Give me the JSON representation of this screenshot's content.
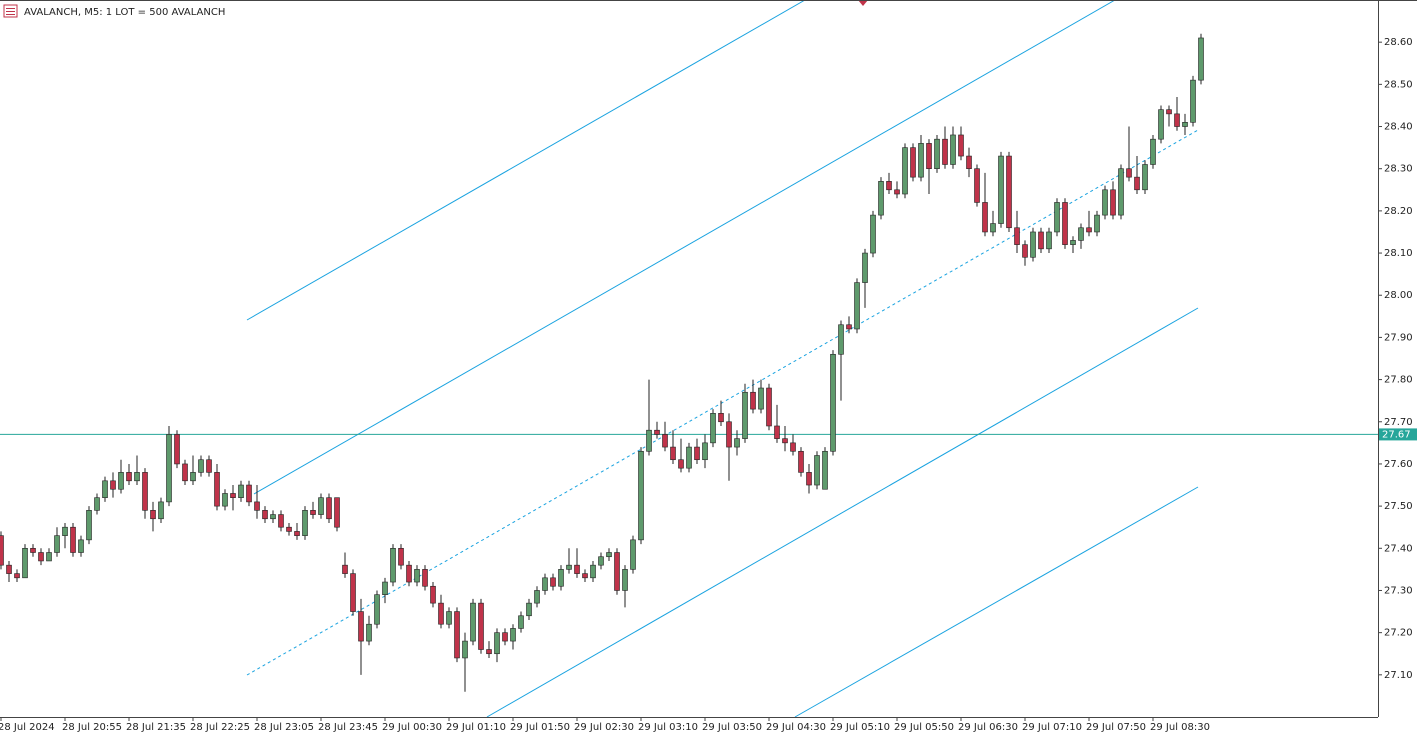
{
  "chart_data": {
    "type": "candlestick",
    "title": "AVALANCH, M5:  1 LOT = 500 AVALANCH",
    "up_color": "#5e9a6c",
    "down_color": "#c0334a",
    "ylim": [
      27.0,
      28.7
    ],
    "yticks": [
      {
        "value": 27.1,
        "label": "27.10"
      },
      {
        "value": 27.2,
        "label": "27.20"
      },
      {
        "value": 27.3,
        "label": "27.30"
      },
      {
        "value": 27.4,
        "label": "27.40"
      },
      {
        "value": 27.5,
        "label": "27.50"
      },
      {
        "value": 27.6,
        "label": "27.60"
      },
      {
        "value": 27.7,
        "label": "27.70"
      },
      {
        "value": 27.8,
        "label": "27.80"
      },
      {
        "value": 27.9,
        "label": "27.90"
      },
      {
        "value": 28.0,
        "label": "28.00"
      },
      {
        "value": 28.1,
        "label": "28.10"
      },
      {
        "value": 28.2,
        "label": "28.20"
      },
      {
        "value": 28.3,
        "label": "28.30"
      },
      {
        "value": 28.4,
        "label": "28.40"
      },
      {
        "value": 28.5,
        "label": "28.50"
      },
      {
        "value": 28.6,
        "label": "28.60"
      }
    ],
    "price_line": {
      "value": 27.67,
      "label": "27.67"
    },
    "categories": [
      "28 Jul 2024",
      null,
      null,
      null,
      null,
      null,
      null,
      null,
      "28 Jul 20:55",
      null,
      null,
      null,
      null,
      null,
      null,
      null,
      "28 Jul 21:35",
      null,
      null,
      null,
      null,
      null,
      null,
      null,
      "28 Jul 22:25",
      null,
      null,
      null,
      null,
      null,
      null,
      null,
      "28 Jul 23:05",
      null,
      null,
      null,
      null,
      null,
      null,
      null,
      "28 Jul 23:45",
      null,
      null,
      null,
      null,
      null,
      null,
      null,
      "29 Jul 00:30",
      null,
      null,
      null,
      null,
      null,
      null,
      null,
      "29 Jul 01:10",
      null,
      null,
      null,
      null,
      null,
      null,
      null,
      "29 Jul 01:50",
      null,
      null,
      null,
      null,
      null,
      null,
      null,
      "29 Jul 02:30",
      null,
      null,
      null,
      null,
      null,
      null,
      null,
      "29 Jul 03:10",
      null,
      null,
      null,
      null,
      null,
      null,
      null,
      "29 Jul 03:50",
      null,
      null,
      null,
      null,
      null,
      null,
      null,
      "29 Jul 04:30",
      null,
      null,
      null,
      null,
      null,
      null,
      null,
      "29 Jul 05:10",
      null,
      null,
      null,
      null,
      null,
      null,
      null,
      "29 Jul 05:50",
      null,
      null,
      null,
      null,
      null,
      null,
      null,
      "29 Jul 06:30",
      null,
      null,
      null,
      null,
      null,
      null,
      null,
      "29 Jul 07:10",
      null,
      null,
      null,
      null,
      null,
      null,
      null,
      "29 Jul 07:50",
      null,
      null,
      null,
      null,
      null,
      null,
      null,
      "29 Jul 08:30",
      null,
      null,
      null,
      null,
      null,
      null
    ],
    "ohlc": [
      [
        27.43,
        27.44,
        27.35,
        27.36
      ],
      [
        27.36,
        27.37,
        27.32,
        27.34
      ],
      [
        27.34,
        27.35,
        27.32,
        27.33
      ],
      [
        27.33,
        27.41,
        27.33,
        27.4
      ],
      [
        27.4,
        27.41,
        27.38,
        27.39
      ],
      [
        27.39,
        27.4,
        27.36,
        27.37
      ],
      [
        27.37,
        27.4,
        27.37,
        27.39
      ],
      [
        27.39,
        27.45,
        27.38,
        27.43
      ],
      [
        27.43,
        27.46,
        27.4,
        27.45
      ],
      [
        27.45,
        27.46,
        27.38,
        27.39
      ],
      [
        27.39,
        27.43,
        27.38,
        27.42
      ],
      [
        27.42,
        27.5,
        27.41,
        27.49
      ],
      [
        27.49,
        27.53,
        27.48,
        27.52
      ],
      [
        27.52,
        27.57,
        27.51,
        27.56
      ],
      [
        27.56,
        27.58,
        27.52,
        27.54
      ],
      [
        27.54,
        27.61,
        27.53,
        27.58
      ],
      [
        27.58,
        27.6,
        27.55,
        27.56
      ],
      [
        27.56,
        27.62,
        27.55,
        27.58
      ],
      [
        27.58,
        27.59,
        27.47,
        27.49
      ],
      [
        27.49,
        27.51,
        27.44,
        27.47
      ],
      [
        27.47,
        27.52,
        27.46,
        27.51
      ],
      [
        27.51,
        27.69,
        27.5,
        27.67
      ],
      [
        27.67,
        27.68,
        27.59,
        27.6
      ],
      [
        27.6,
        27.61,
        27.55,
        27.56
      ],
      [
        27.56,
        27.62,
        27.55,
        27.58
      ],
      [
        27.58,
        27.62,
        27.57,
        27.61
      ],
      [
        27.61,
        27.62,
        27.57,
        27.58
      ],
      [
        27.58,
        27.6,
        27.49,
        27.5
      ],
      [
        27.5,
        27.54,
        27.49,
        27.53
      ],
      [
        27.53,
        27.55,
        27.49,
        27.52
      ],
      [
        27.52,
        27.56,
        27.51,
        27.55
      ],
      [
        27.55,
        27.56,
        27.5,
        27.51
      ],
      [
        27.51,
        27.55,
        27.47,
        27.49
      ],
      [
        27.49,
        27.5,
        27.46,
        27.47
      ],
      [
        27.47,
        27.49,
        27.46,
        27.48
      ],
      [
        27.48,
        27.49,
        27.44,
        27.45
      ],
      [
        27.45,
        27.46,
        27.43,
        27.44
      ],
      [
        27.44,
        27.46,
        27.42,
        27.43
      ],
      [
        27.43,
        27.5,
        27.42,
        27.49
      ],
      [
        27.49,
        27.51,
        27.47,
        27.48
      ],
      [
        27.48,
        27.53,
        27.47,
        27.52
      ],
      [
        27.52,
        27.53,
        27.46,
        27.47
      ],
      [
        27.52,
        27.52,
        27.44,
        27.45
      ],
      [
        27.36,
        27.39,
        27.33,
        27.34
      ],
      [
        27.34,
        27.35,
        27.24,
        27.25
      ],
      [
        27.25,
        27.28,
        27.1,
        27.18
      ],
      [
        27.18,
        27.24,
        27.17,
        27.22
      ],
      [
        27.22,
        27.3,
        27.21,
        27.29
      ],
      [
        27.29,
        27.33,
        27.27,
        27.32
      ],
      [
        27.32,
        27.41,
        27.31,
        27.4
      ],
      [
        27.4,
        27.41,
        27.35,
        27.36
      ],
      [
        27.36,
        27.37,
        27.31,
        27.32
      ],
      [
        27.32,
        27.36,
        27.31,
        27.35
      ],
      [
        27.35,
        27.36,
        27.3,
        27.31
      ],
      [
        27.31,
        27.32,
        27.26,
        27.27
      ],
      [
        27.27,
        27.29,
        27.21,
        27.22
      ],
      [
        27.22,
        27.26,
        27.21,
        27.25
      ],
      [
        27.25,
        27.26,
        27.13,
        27.14
      ],
      [
        27.14,
        27.2,
        27.06,
        27.18
      ],
      [
        27.18,
        27.28,
        27.17,
        27.27
      ],
      [
        27.27,
        27.28,
        27.15,
        27.16
      ],
      [
        27.16,
        27.18,
        27.14,
        27.15
      ],
      [
        27.15,
        27.21,
        27.13,
        27.2
      ],
      [
        27.2,
        27.21,
        27.17,
        27.18
      ],
      [
        27.18,
        27.22,
        27.16,
        27.21
      ],
      [
        27.21,
        27.25,
        27.2,
        27.24
      ],
      [
        27.24,
        27.28,
        27.23,
        27.27
      ],
      [
        27.27,
        27.31,
        27.26,
        27.3
      ],
      [
        27.3,
        27.34,
        27.29,
        27.33
      ],
      [
        27.33,
        27.34,
        27.3,
        27.31
      ],
      [
        27.31,
        27.36,
        27.3,
        27.35
      ],
      [
        27.35,
        27.4,
        27.34,
        27.36
      ],
      [
        27.36,
        27.4,
        27.33,
        27.34
      ],
      [
        27.34,
        27.35,
        27.32,
        27.33
      ],
      [
        27.33,
        27.37,
        27.32,
        27.36
      ],
      [
        27.36,
        27.39,
        27.35,
        27.38
      ],
      [
        27.38,
        27.4,
        27.37,
        27.39
      ],
      [
        27.39,
        27.4,
        27.29,
        27.3
      ],
      [
        27.3,
        27.36,
        27.26,
        27.35
      ],
      [
        27.35,
        27.43,
        27.34,
        27.42
      ],
      [
        27.42,
        27.64,
        27.41,
        27.63
      ],
      [
        27.63,
        27.8,
        27.62,
        27.68
      ],
      [
        27.68,
        27.7,
        27.66,
        27.67
      ],
      [
        27.67,
        27.7,
        27.63,
        27.64
      ],
      [
        27.64,
        27.68,
        27.6,
        27.61
      ],
      [
        27.61,
        27.66,
        27.58,
        27.59
      ],
      [
        27.59,
        27.65,
        27.58,
        27.64
      ],
      [
        27.64,
        27.66,
        27.6,
        27.61
      ],
      [
        27.61,
        27.67,
        27.59,
        27.65
      ],
      [
        27.65,
        27.73,
        27.64,
        27.72
      ],
      [
        27.72,
        27.75,
        27.69,
        27.7
      ],
      [
        27.7,
        27.72,
        27.56,
        27.64
      ],
      [
        27.64,
        27.68,
        27.62,
        27.66
      ],
      [
        27.66,
        27.79,
        27.65,
        27.77
      ],
      [
        27.77,
        27.8,
        27.72,
        27.73
      ],
      [
        27.73,
        27.8,
        27.72,
        27.78
      ],
      [
        27.78,
        27.79,
        27.68,
        27.69
      ],
      [
        27.69,
        27.74,
        27.65,
        27.66
      ],
      [
        27.66,
        27.69,
        27.63,
        27.65
      ],
      [
        27.65,
        27.67,
        27.62,
        27.63
      ],
      [
        27.63,
        27.64,
        27.57,
        27.58
      ],
      [
        27.58,
        27.6,
        27.53,
        27.55
      ],
      [
        27.55,
        27.63,
        27.54,
        27.62
      ],
      [
        27.54,
        27.64,
        27.54,
        27.63
      ],
      [
        27.63,
        27.87,
        27.62,
        27.86
      ],
      [
        27.86,
        27.94,
        27.75,
        27.93
      ],
      [
        27.93,
        27.95,
        27.91,
        27.92
      ],
      [
        27.92,
        28.04,
        27.91,
        28.03
      ],
      [
        28.03,
        28.11,
        27.97,
        28.1
      ],
      [
        28.1,
        28.2,
        28.09,
        28.19
      ],
      [
        28.19,
        28.28,
        28.18,
        28.27
      ],
      [
        28.27,
        28.29,
        28.24,
        28.25
      ],
      [
        28.25,
        28.27,
        28.23,
        28.24
      ],
      [
        28.24,
        28.36,
        28.23,
        28.35
      ],
      [
        28.35,
        28.36,
        28.27,
        28.28
      ],
      [
        28.28,
        28.38,
        28.27,
        28.36
      ],
      [
        28.36,
        28.37,
        28.24,
        28.3
      ],
      [
        28.3,
        28.38,
        28.29,
        28.37
      ],
      [
        28.37,
        28.4,
        28.3,
        28.31
      ],
      [
        28.31,
        28.4,
        28.3,
        28.38
      ],
      [
        28.38,
        28.4,
        28.32,
        28.33
      ],
      [
        28.33,
        28.35,
        28.28,
        28.3
      ],
      [
        28.3,
        28.31,
        28.21,
        28.22
      ],
      [
        28.22,
        28.29,
        28.14,
        28.15
      ],
      [
        28.15,
        28.2,
        28.14,
        28.17
      ],
      [
        28.17,
        28.34,
        28.16,
        28.33
      ],
      [
        28.33,
        28.34,
        28.15,
        28.16
      ],
      [
        28.16,
        28.2,
        28.1,
        28.12
      ],
      [
        28.12,
        28.13,
        28.07,
        28.09
      ],
      [
        28.09,
        28.16,
        28.08,
        28.15
      ],
      [
        28.15,
        28.16,
        28.1,
        28.11
      ],
      [
        28.11,
        28.16,
        28.1,
        28.15
      ],
      [
        28.15,
        28.23,
        28.14,
        28.22
      ],
      [
        28.22,
        28.23,
        28.11,
        28.12
      ],
      [
        28.12,
        28.14,
        28.1,
        28.13
      ],
      [
        28.13,
        28.17,
        28.11,
        28.16
      ],
      [
        28.16,
        28.2,
        28.14,
        28.15
      ],
      [
        28.15,
        28.2,
        28.14,
        28.19
      ],
      [
        28.19,
        28.26,
        28.18,
        28.25
      ],
      [
        28.25,
        28.27,
        28.18,
        28.19
      ],
      [
        28.19,
        28.31,
        28.18,
        28.3
      ],
      [
        28.3,
        28.4,
        28.27,
        28.28
      ],
      [
        28.28,
        28.33,
        28.24,
        28.25
      ],
      [
        28.25,
        28.32,
        28.24,
        28.31
      ],
      [
        28.31,
        28.38,
        28.3,
        28.37
      ],
      [
        28.37,
        28.45,
        28.36,
        28.44
      ],
      [
        28.44,
        28.45,
        28.4,
        28.43
      ],
      [
        28.43,
        28.47,
        28.39,
        28.4
      ],
      [
        28.4,
        28.43,
        28.38,
        28.41
      ],
      [
        28.41,
        28.52,
        28.4,
        28.51
      ],
      [
        28.51,
        28.62,
        28.5,
        28.61
      ]
    ]
  }
}
